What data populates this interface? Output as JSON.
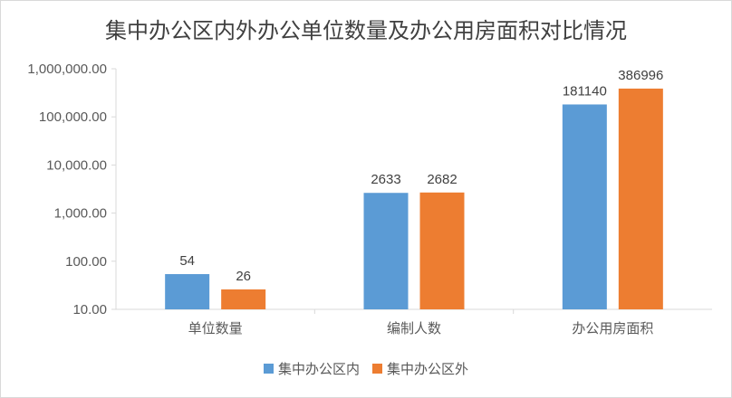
{
  "chart_data": {
    "type": "bar",
    "title": "集中办公区内外办公单位数量及办公用房面积对比情况",
    "categories": [
      "单位数量",
      "编制人数",
      "办公用房面积"
    ],
    "series": [
      {
        "name": "集中办公区内",
        "values": [
          54,
          2633,
          181140
        ],
        "color": "#5b9bd5"
      },
      {
        "name": "集中办公区外",
        "values": [
          26,
          2682,
          386996
        ],
        "color": "#ed7d31"
      }
    ],
    "y_scale": "log",
    "ylim": [
      10,
      1000000
    ],
    "yticks": [
      10,
      100,
      1000,
      10000,
      100000,
      1000000
    ],
    "ytick_labels": [
      "10.00",
      "100.00",
      "1,000.00",
      "10,000.00",
      "100,000.00",
      "1,000,000.00"
    ],
    "grid": false,
    "legend_position": "bottom",
    "axis_color": "#d9d9d9",
    "text_color": "#595959"
  }
}
